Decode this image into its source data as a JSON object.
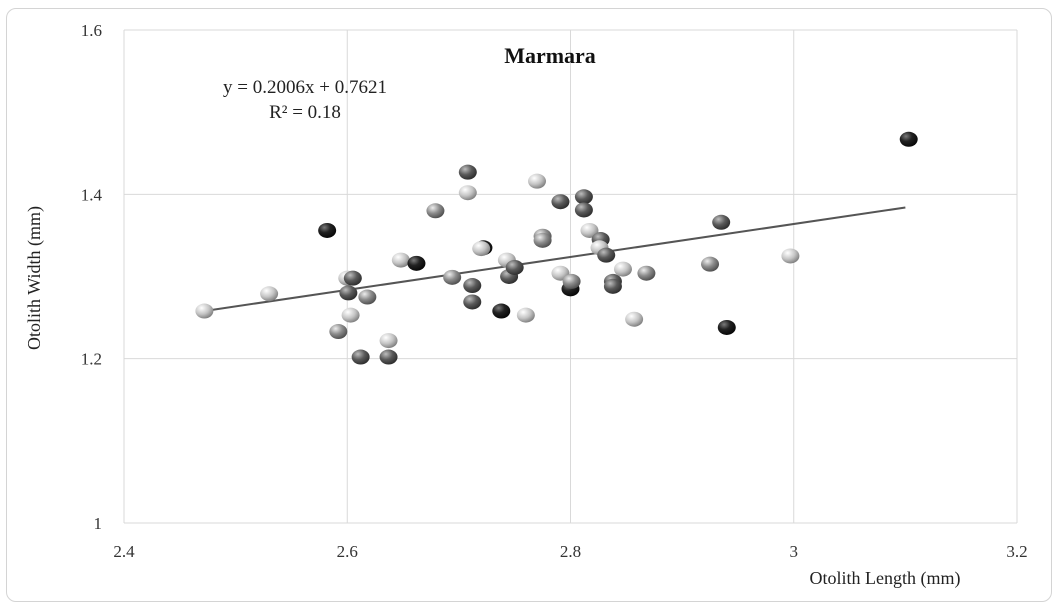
{
  "chart_data": {
    "type": "scatter",
    "title": "Marmara",
    "xlabel": "Otolith Length  (mm)",
    "ylabel": "Otolith Width (mm)",
    "xlim": [
      2.4,
      3.2
    ],
    "ylim": [
      1.0,
      1.6
    ],
    "x_ticks": [
      "2.4",
      "2.6",
      "2.8",
      "3",
      "3.2"
    ],
    "y_ticks": [
      "1",
      "1.2",
      "1.4",
      "1.6"
    ],
    "grid": true,
    "trendline": {
      "slope": 0.2006,
      "intercept": 0.7621,
      "x_range": [
        2.47,
        3.1
      ],
      "equation": "y = 0.2006x + 0.7621",
      "r_squared": "R² = 0.18"
    },
    "colors": {
      "black": "#111111",
      "dark": "#555555",
      "medium": "#8c8c8c",
      "light": "#c4c4c4",
      "trendline": "#555555"
    },
    "points": [
      {
        "x": 2.472,
        "y": 1.258,
        "shade": "light"
      },
      {
        "x": 2.53,
        "y": 1.279,
        "shade": "light"
      },
      {
        "x": 2.582,
        "y": 1.356,
        "shade": "black"
      },
      {
        "x": 2.592,
        "y": 1.233,
        "shade": "medium"
      },
      {
        "x": 2.6,
        "y": 1.298,
        "shade": "light"
      },
      {
        "x": 2.601,
        "y": 1.28,
        "shade": "dark"
      },
      {
        "x": 2.603,
        "y": 1.253,
        "shade": "light"
      },
      {
        "x": 2.605,
        "y": 1.298,
        "shade": "dark"
      },
      {
        "x": 2.612,
        "y": 1.202,
        "shade": "dark"
      },
      {
        "x": 2.618,
        "y": 1.275,
        "shade": "medium"
      },
      {
        "x": 2.637,
        "y": 1.222,
        "shade": "light"
      },
      {
        "x": 2.637,
        "y": 1.202,
        "shade": "dark"
      },
      {
        "x": 2.648,
        "y": 1.32,
        "shade": "light"
      },
      {
        "x": 2.662,
        "y": 1.316,
        "shade": "black"
      },
      {
        "x": 2.679,
        "y": 1.38,
        "shade": "medium"
      },
      {
        "x": 2.694,
        "y": 1.299,
        "shade": "medium"
      },
      {
        "x": 2.708,
        "y": 1.427,
        "shade": "dark"
      },
      {
        "x": 2.708,
        "y": 1.402,
        "shade": "light"
      },
      {
        "x": 2.712,
        "y": 1.289,
        "shade": "dark"
      },
      {
        "x": 2.712,
        "y": 1.269,
        "shade": "dark"
      },
      {
        "x": 2.722,
        "y": 1.335,
        "shade": "black"
      },
      {
        "x": 2.72,
        "y": 1.334,
        "shade": "light"
      },
      {
        "x": 2.738,
        "y": 1.258,
        "shade": "black"
      },
      {
        "x": 2.743,
        "y": 1.32,
        "shade": "light"
      },
      {
        "x": 2.745,
        "y": 1.3,
        "shade": "dark"
      },
      {
        "x": 2.75,
        "y": 1.311,
        "shade": "dark"
      },
      {
        "x": 2.76,
        "y": 1.253,
        "shade": "light"
      },
      {
        "x": 2.77,
        "y": 1.416,
        "shade": "light"
      },
      {
        "x": 2.775,
        "y": 1.349,
        "shade": "medium"
      },
      {
        "x": 2.775,
        "y": 1.344,
        "shade": "medium"
      },
      {
        "x": 2.791,
        "y": 1.391,
        "shade": "dark"
      },
      {
        "x": 2.791,
        "y": 1.304,
        "shade": "light"
      },
      {
        "x": 2.8,
        "y": 1.285,
        "shade": "black"
      },
      {
        "x": 2.801,
        "y": 1.294,
        "shade": "medium"
      },
      {
        "x": 2.812,
        "y": 1.397,
        "shade": "dark"
      },
      {
        "x": 2.812,
        "y": 1.381,
        "shade": "dark"
      },
      {
        "x": 2.817,
        "y": 1.356,
        "shade": "light"
      },
      {
        "x": 2.827,
        "y": 1.345,
        "shade": "dark"
      },
      {
        "x": 2.826,
        "y": 1.335,
        "shade": "light"
      },
      {
        "x": 2.832,
        "y": 1.326,
        "shade": "dark"
      },
      {
        "x": 2.838,
        "y": 1.294,
        "shade": "dark"
      },
      {
        "x": 2.838,
        "y": 1.288,
        "shade": "dark"
      },
      {
        "x": 2.847,
        "y": 1.309,
        "shade": "light"
      },
      {
        "x": 2.857,
        "y": 1.248,
        "shade": "light"
      },
      {
        "x": 2.868,
        "y": 1.304,
        "shade": "medium"
      },
      {
        "x": 2.925,
        "y": 1.315,
        "shade": "medium"
      },
      {
        "x": 2.935,
        "y": 1.366,
        "shade": "dark"
      },
      {
        "x": 2.94,
        "y": 1.238,
        "shade": "black"
      },
      {
        "x": 2.997,
        "y": 1.325,
        "shade": "light"
      },
      {
        "x": 3.103,
        "y": 1.467,
        "shade": "black"
      }
    ]
  }
}
